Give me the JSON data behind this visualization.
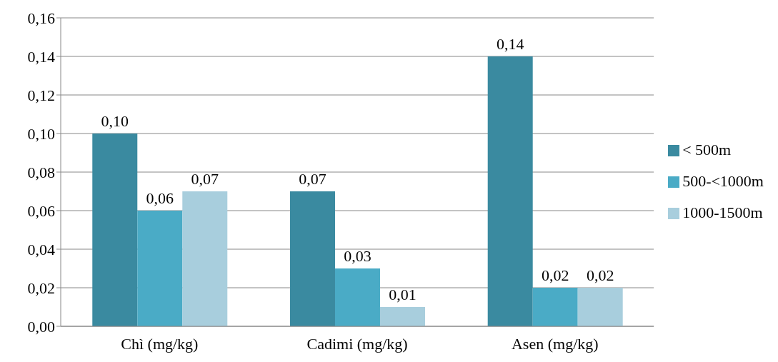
{
  "chart_data": {
    "type": "bar",
    "categories": [
      "Chì (mg/kg)",
      "Cadimi (mg/kg)",
      "Asen (mg/kg)"
    ],
    "series": [
      {
        "name": "< 500m",
        "color": "#3a8aa0",
        "values": [
          0.1,
          0.07,
          0.14
        ],
        "value_labels": [
          "0,10",
          "0,07",
          "0,14"
        ]
      },
      {
        "name": "500-<1000m",
        "color": "#4aabc6",
        "values": [
          0.06,
          0.03,
          0.02
        ],
        "value_labels": [
          "0,06",
          "0,03",
          "0,02"
        ]
      },
      {
        "name": "1000-1500m",
        "color": "#a8cedd",
        "values": [
          0.07,
          0.01,
          0.02
        ],
        "value_labels": [
          "0,07",
          "0,01",
          "0,02"
        ]
      }
    ],
    "ylim": [
      0,
      0.16
    ],
    "yticks": [
      {
        "value": 0,
        "label": "0,00"
      },
      {
        "value": 0.02,
        "label": "0,02"
      },
      {
        "value": 0.04,
        "label": "0,04"
      },
      {
        "value": 0.06,
        "label": "0,06"
      },
      {
        "value": 0.08,
        "label": "0,08"
      },
      {
        "value": 0.1,
        "label": "0,10"
      },
      {
        "value": 0.12,
        "label": "0,12"
      },
      {
        "value": 0.14,
        "label": "0,14"
      },
      {
        "value": 0.16,
        "label": "0,16"
      }
    ],
    "grid": "y",
    "legend": "right"
  }
}
